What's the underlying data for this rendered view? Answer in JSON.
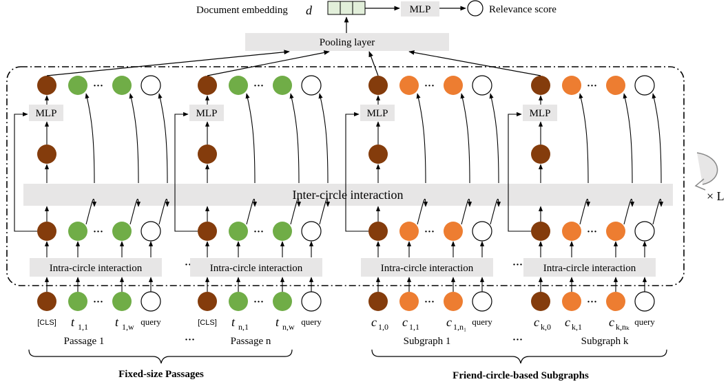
{
  "header": {
    "doc_embedding_label": "Document embedding",
    "doc_embedding_symbol": "d",
    "mlp_label": "MLP",
    "relevance_label": "Relevance score"
  },
  "pooling_label": "Pooling layer",
  "inter_label": "Inter-circle interaction",
  "intra_label": "Intra-circle interaction",
  "mlp_block_label": "MLP",
  "repeat_label": "× L",
  "dots": "···",
  "groups": [
    {
      "caption": "Passage 1",
      "kind": "passage",
      "tokens": {
        "first": "[CLS]",
        "second": [
          "t",
          "1,1"
        ],
        "third": [
          "t",
          "1,w"
        ],
        "fourth": "query"
      }
    },
    {
      "caption": "Passage n",
      "kind": "passage",
      "tokens": {
        "first": "[CLS]",
        "second": [
          "t",
          "n,1"
        ],
        "third": [
          "t",
          "n,w"
        ],
        "fourth": "query"
      }
    },
    {
      "caption": "Subgraph 1",
      "kind": "subgraph",
      "tokens": {
        "first": [
          "c",
          "1,0"
        ],
        "second": [
          "c",
          "1,1"
        ],
        "third": [
          "c",
          "1,n₁"
        ],
        "fourth": "query"
      }
    },
    {
      "caption": "Subgraph k",
      "kind": "subgraph",
      "tokens": {
        "first": [
          "c",
          "k,0"
        ],
        "second": [
          "c",
          "k,1"
        ],
        "third": [
          "c",
          "k,nₖ"
        ],
        "fourth": "query"
      }
    }
  ],
  "bottom_labels": {
    "passages": "Fixed-size Passages",
    "subgraphs": "Friend-circle-based Subgraphs"
  },
  "colors": {
    "cls_node": "#843c0c",
    "passage_node": "#70ad47",
    "subgraph_node": "#ed7d31",
    "box_fill": "#e7e6e6"
  }
}
